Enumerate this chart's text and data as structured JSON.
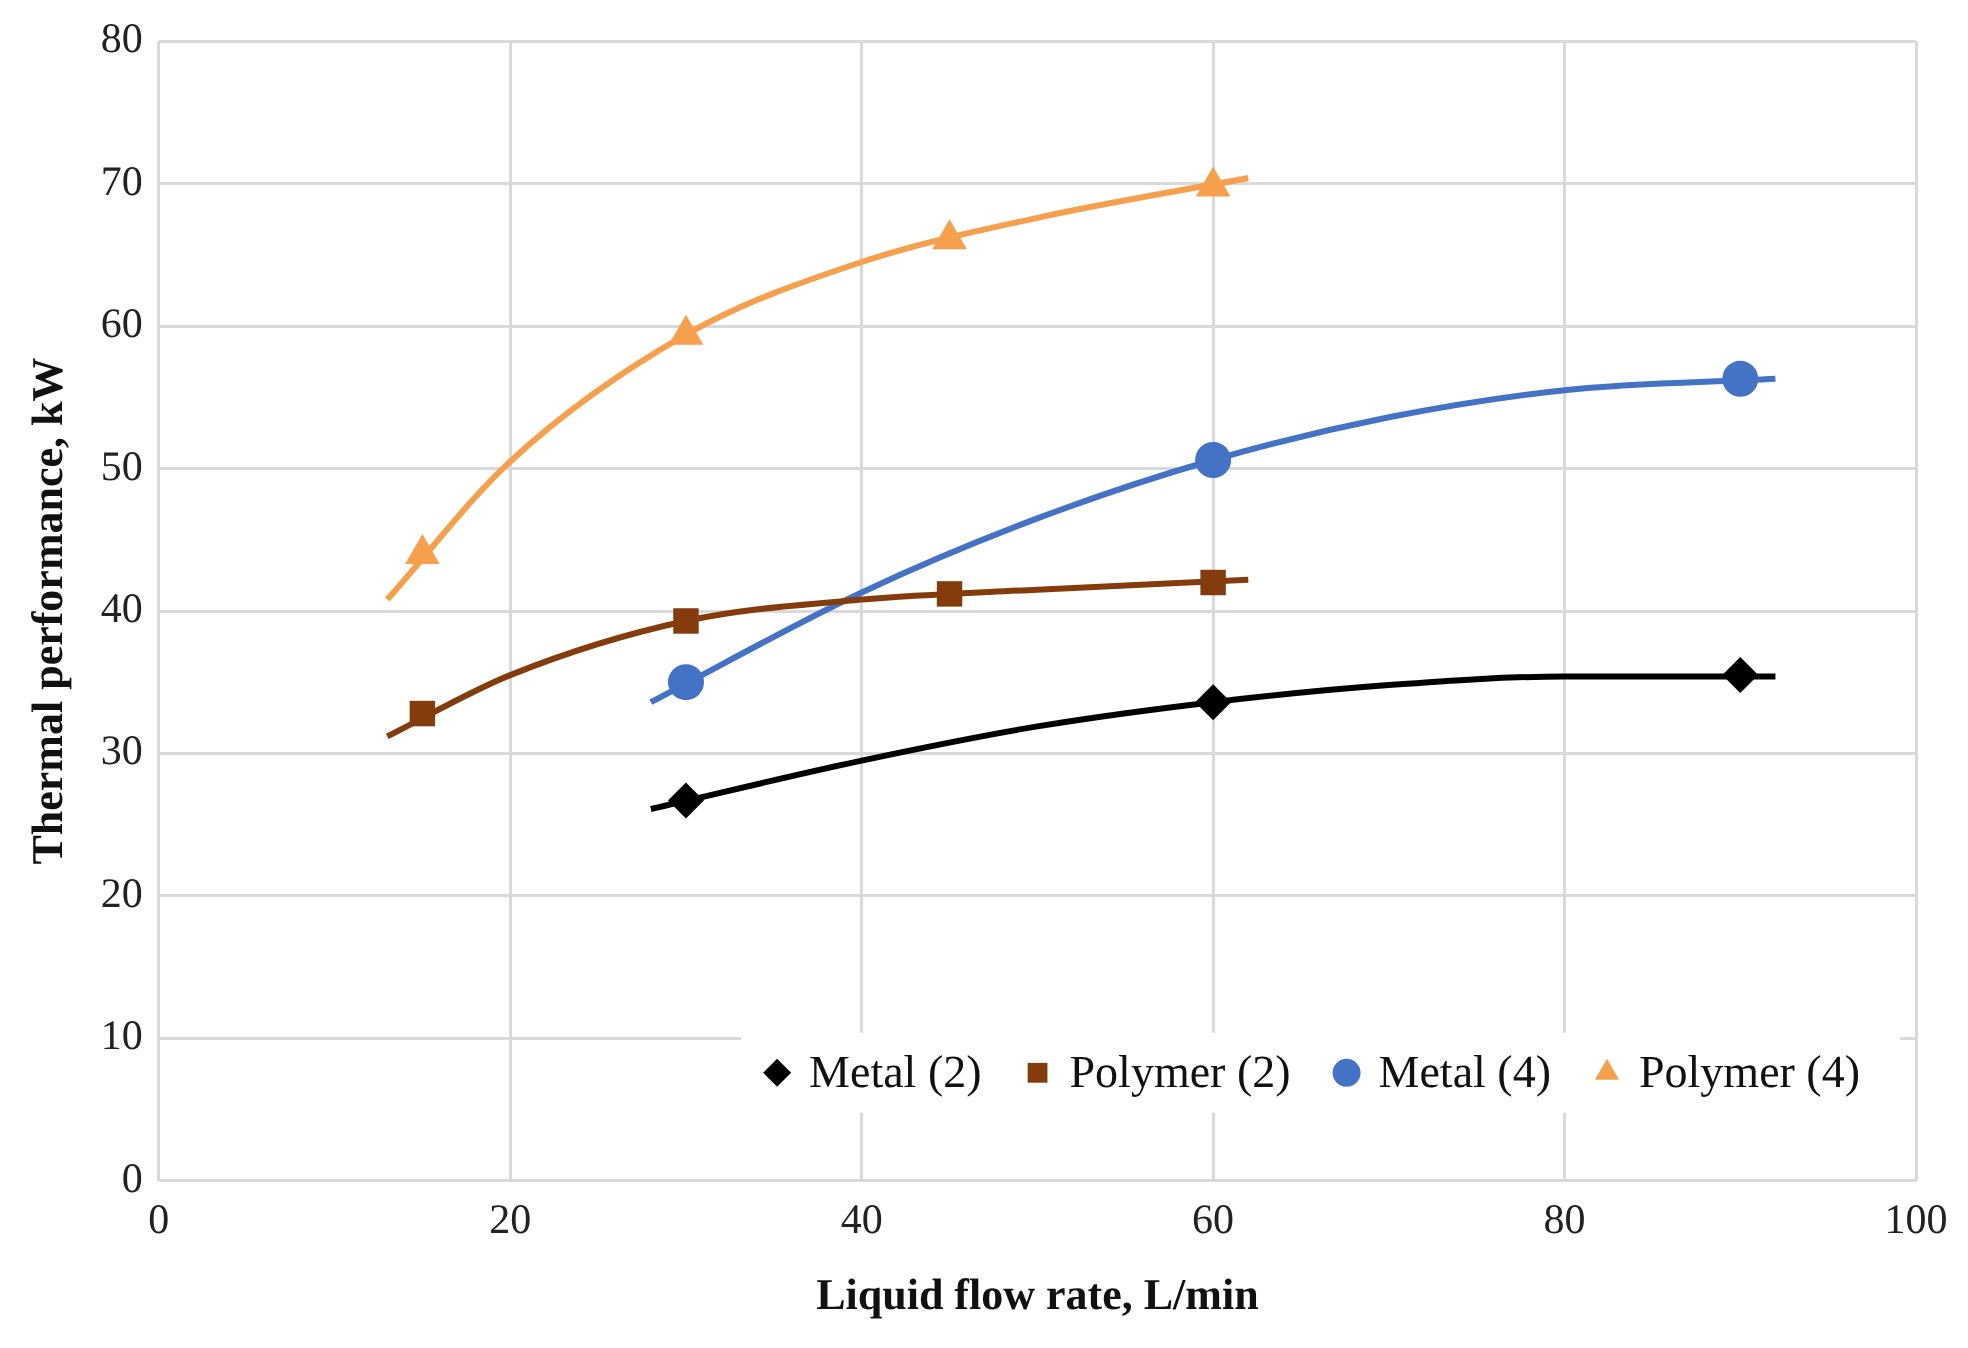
{
  "chart_data": {
    "type": "scatter",
    "xlabel": "Liquid flow rate, L/min",
    "ylabel": "Thermal performance, kW",
    "xlim": [
      0,
      100
    ],
    "xticks": [
      0,
      20,
      40,
      60,
      80,
      100
    ],
    "ylim": [
      0,
      80
    ],
    "yticks": [
      0,
      10,
      20,
      30,
      40,
      50,
      60,
      70,
      80
    ],
    "grid": true,
    "legend": "bottom right",
    "series": [
      {
        "type": "line",
        "marker": "none",
        "color": "#000000",
        "x": [
          28,
          40,
          50,
          60,
          70,
          80,
          92
        ],
        "values": [
          26.1,
          29.5,
          31.9,
          33.6,
          34.8,
          35.4,
          35.4
        ]
      },
      {
        "type": "line",
        "marker": "none",
        "color": "#843c0c",
        "x": [
          13,
          20,
          30,
          40,
          50,
          62
        ],
        "values": [
          31.2,
          35.5,
          39.3,
          40.8,
          41.5,
          42.2
        ]
      },
      {
        "type": "line",
        "marker": "none",
        "color": "#4472c4",
        "x": [
          28,
          40,
          50,
          60,
          70,
          80,
          92
        ],
        "values": [
          33.6,
          41.3,
          46.5,
          50.6,
          53.6,
          55.5,
          56.3
        ]
      },
      {
        "type": "line",
        "marker": "none",
        "color": "#f6a04d",
        "x": [
          13,
          20,
          30,
          40,
          50,
          62
        ],
        "values": [
          40.8,
          50.5,
          59.4,
          64.5,
          67.6,
          70.4
        ]
      },
      {
        "name": "Metal (2)",
        "marker": "diamond",
        "color": "#000000",
        "x": [
          30,
          60,
          90
        ],
        "values": [
          26.7,
          33.6,
          35.5
        ]
      },
      {
        "name": "Polymer (2)",
        "marker": "square",
        "color": "#843c0c",
        "x": [
          15,
          30,
          45,
          60
        ],
        "values": [
          32.8,
          39.3,
          41.2,
          42
        ]
      },
      {
        "name": "Metal (4)",
        "marker": "circle",
        "color": "#4472c4",
        "x": [
          30,
          60,
          90
        ],
        "values": [
          35,
          50.6,
          56.3
        ]
      },
      {
        "name": "Polymer (4)",
        "marker": "triangle",
        "color": "#f6a04d",
        "x": [
          15,
          30,
          45,
          60
        ],
        "values": [
          44,
          59.4,
          66.1,
          69.8
        ]
      }
    ]
  }
}
